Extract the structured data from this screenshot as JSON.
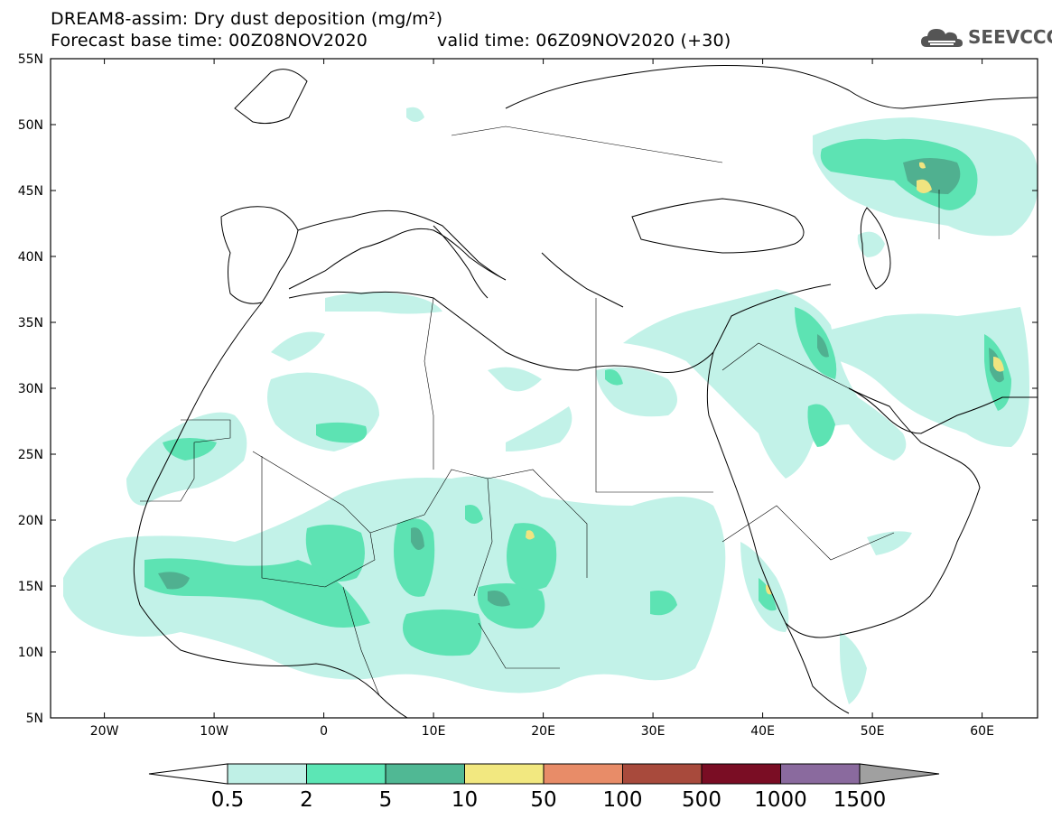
{
  "header": {
    "title_line1": "DREAM8-assim: Dry dust deposition (mg/m²)",
    "title_line2": "Forecast base time: 00Z08NOV2020",
    "title_line2_valid": "valid time: 06Z09NOV2020 (+30)",
    "logo_text": "SEEVCCC"
  },
  "axes": {
    "lat_labels": [
      "55N",
      "50N",
      "45N",
      "40N",
      "35N",
      "30N",
      "25N",
      "20N",
      "15N",
      "10N",
      "5N"
    ],
    "lon_labels": [
      "20W",
      "10W",
      "0",
      "10E",
      "20E",
      "30E",
      "40E",
      "50E",
      "60E"
    ]
  },
  "colorbar": {
    "labels": [
      "0.5",
      "2",
      "5",
      "10",
      "50",
      "100",
      "500",
      "1000",
      "1500"
    ],
    "colors": [
      "#bff0e6",
      "#5ce6b5",
      "#50b894",
      "#f2e880",
      "#e88c68",
      "#a84a3c",
      "#7a0d24",
      "#8a6a9e",
      "#a0a0a0"
    ]
  },
  "palette": {
    "light": "#c2f2e8",
    "mid": "#5de3b3",
    "dark": "#50b090",
    "yellow": "#f0e480"
  }
}
